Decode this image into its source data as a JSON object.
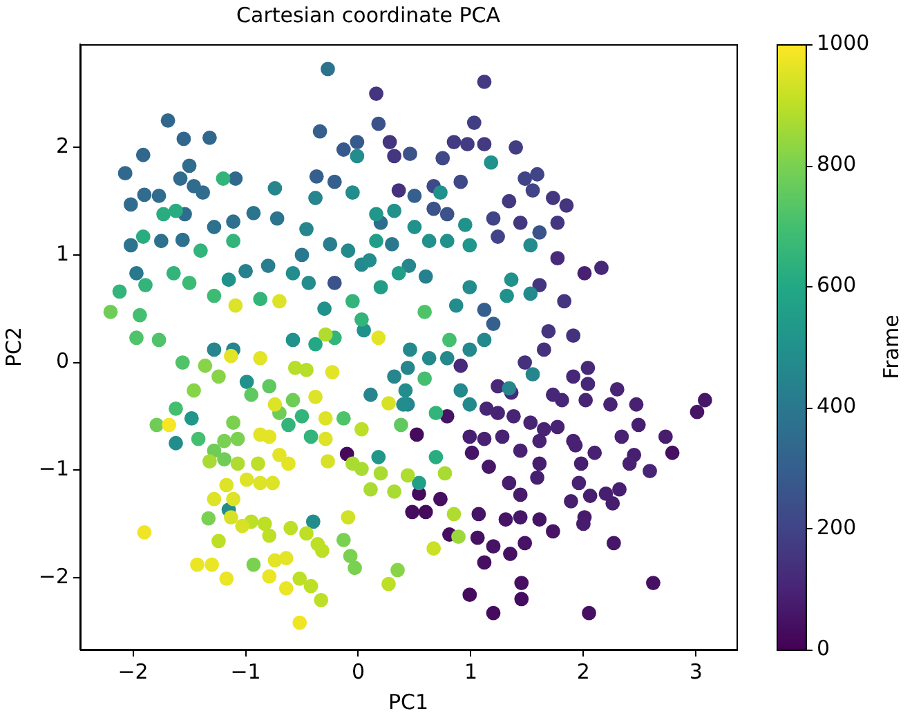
{
  "chart_data": {
    "type": "scatter",
    "title": "Cartesian coordinate PCA",
    "xlabel": "PC1",
    "ylabel": "PC2",
    "clabel": "Frame",
    "marker": "circle",
    "xlim": [
      -2.47,
      3.36
    ],
    "ylim": [
      -2.67,
      2.96
    ],
    "xticks": [
      {
        "value": -2,
        "label": "−2"
      },
      {
        "value": -1,
        "label": "−1"
      },
      0,
      1,
      2,
      3
    ],
    "yticks": [
      {
        "value": -2,
        "label": "−2"
      },
      {
        "value": -1,
        "label": "−1"
      },
      0,
      1,
      2
    ],
    "clim": [
      0,
      1000
    ],
    "cticks": [
      0,
      200,
      400,
      600,
      800,
      1000
    ],
    "x": [
      -0.1,
      0.52,
      0.54,
      0.6,
      0.79,
      0.48,
      0.73,
      0.81,
      0.99,
      1.2,
      2.05,
      1.45,
      1.45,
      1.12,
      1.06,
      1.2,
      1.35,
      1.48,
      1.07,
      1.31,
      1.44,
      1.61,
      1.73,
      2.27,
      2.62,
      2.79,
      3.01,
      3.08,
      1.16,
      1.01,
      1.44,
      2.01,
      2.0,
      1.89,
      2.06,
      2.2,
      2.32,
      2.26,
      1.96,
      1.98,
      1.93,
      1.61,
      1.59,
      1.34,
      0.99,
      1.12,
      1.28,
      1.44,
      1.61,
      1.65,
      1.53,
      1.38,
      1.24,
      1.14,
      1.77,
      1.91,
      2.1,
      1.81,
      1.73,
      2.02,
      1.91,
      2.04,
      2.04,
      2.3,
      2.24,
      2.47,
      2.49,
      2.34,
      2.45,
      2.41,
      2.59,
      2.73,
      1.24,
      1.36,
      0.91,
      2.01,
      2.16,
      1.77,
      1.48,
      1.65,
      1.69,
      1.91,
      1.61,
      1.83,
      1.85,
      1.73,
      1.77,
      1.44,
      1.34,
      0.36,
      0.28,
      0.32,
      0.16,
      1.12,
      1.03,
      1.4,
      0.85,
      0.97,
      1.12,
      1.48,
      1.59,
      1.55,
      1.2,
      1.24,
      0.75,
      0.67,
      0.91,
      0.79,
      0.67,
      0.46,
      0.18,
      1.61,
      -0.21,
      -0.13,
      -0.01,
      -0.34,
      -0.37,
      -0.21,
      1.12,
      1.2,
      0.5,
      -1.69,
      -1.55,
      -1.32,
      -1.91,
      -2.07,
      -1.09,
      -1.5,
      -1.58,
      -1.46,
      -1.38,
      -1.9,
      -1.77,
      -2.02,
      -1.54,
      0.2,
      -1.75,
      -1.56,
      -1.28,
      -1.11,
      -2.02,
      -0.93,
      -0.72,
      -0.27,
      -1.97,
      -0.5,
      0.3,
      -0.25,
      -0.8,
      -1.0,
      0.6,
      -0.74,
      -0.46,
      -0.38,
      -1.28,
      -1.11,
      0.11,
      0.44,
      0.32,
      0.44,
      1.55,
      1.34,
      0.45,
      -0.58,
      -0.44,
      -0.05,
      -0.01,
      -0.09,
      0.03,
      0.1,
      1.53,
      1.53,
      0.99,
      0.87,
      0.46,
      0.63,
      0.79,
      0.99,
      1.12,
      0.91,
      0.99,
      0.42,
      0.4,
      -1.62,
      -0.4,
      -1.15,
      -0.99,
      -1.15,
      0.32,
      1.18,
      0.73,
      0.5,
      0.63,
      0.79,
      0.95,
      1.36,
      1.32,
      -0.3,
      0.05,
      -0.58,
      0.16,
      0.99,
      -1.48,
      0.18,
      0.16,
      0.2,
      0.36,
      0.54,
      -1.73,
      -1.62,
      -1.91,
      0.69,
      -0.38,
      -1.2,
      -1.11,
      -1.4,
      -2.12,
      -1.89,
      -1.64,
      -0.87,
      -0.05,
      0.03,
      -0.62,
      -0.5,
      -0.42,
      0.69,
      -0.21,
      -1.5,
      -1.28,
      -1.94,
      -1.62,
      -1.42,
      0.59,
      0.81,
      0.59,
      -1.97,
      -1.77,
      -1.56,
      -0.13,
      0.38,
      -0.95,
      -0.79,
      -2.2,
      -1.79,
      -0.7,
      -0.58,
      -1.28,
      -1.19,
      -1.33,
      -0.93,
      -0.13,
      -0.07,
      -0.03,
      -1.11,
      -1.19,
      -1.07,
      -1.36,
      -1.24,
      -1.46,
      0.35,
      0.89,
      0.77,
      0.44,
      0.85,
      -0.05,
      0.03,
      0.11,
      0.2,
      0.32,
      -1.32,
      -1.07,
      -0.29,
      -0.56,
      -0.46,
      0.27,
      -0.89,
      -1.24,
      -0.79,
      -0.6,
      -0.46,
      -0.36,
      -0.32,
      -0.52,
      -0.42,
      -0.33,
      -0.95,
      -0.83,
      0.03,
      0.67,
      -0.09,
      -1.13,
      -1.03,
      0.27,
      -0.27,
      -0.74,
      -0.38,
      -0.29,
      -0.29,
      -1.28,
      -1.11,
      -1.17,
      -0.99,
      -0.87,
      -0.76,
      -1.09,
      -0.7,
      -0.74,
      -0.64,
      -0.87,
      -0.79,
      -0.7,
      -0.62,
      -0.23,
      -0.87,
      -1.13,
      0.18,
      -1.43,
      -1.3,
      -1.17,
      -0.79,
      -0.64,
      -1.9,
      -0.52,
      -1.68
    ],
    "values": [
      -0.85,
      -0.67,
      -1.22,
      -1.39,
      -0.5,
      -1.39,
      -1.27,
      -1.6,
      -2.16,
      -2.33,
      -2.33,
      -2.2,
      -2.05,
      -1.86,
      -1.63,
      -1.71,
      -1.78,
      -1.68,
      -1.41,
      -1.46,
      -1.44,
      -1.46,
      -1.57,
      -1.68,
      -2.05,
      -0.84,
      -0.46,
      -0.35,
      -0.97,
      -0.84,
      -1.23,
      -1.44,
      -1.5,
      -1.29,
      -1.24,
      -1.22,
      -1.18,
      -1.31,
      -1.12,
      -0.94,
      -0.77,
      -0.94,
      -1.07,
      -1.12,
      -0.69,
      -0.71,
      -0.69,
      -0.82,
      -0.73,
      -0.62,
      -0.56,
      -0.5,
      -0.47,
      -0.43,
      -0.6,
      -0.73,
      -0.84,
      -0.35,
      -0.3,
      -0.35,
      -0.13,
      -0.05,
      -0.2,
      -0.25,
      -0.39,
      -0.39,
      -0.58,
      -0.69,
      -0.86,
      -0.94,
      -1.01,
      -0.69,
      -0.22,
      -0.28,
      -0.03,
      0.83,
      0.88,
      0.97,
      0.0,
      0.12,
      0.29,
      0.25,
      0.72,
      0.57,
      1.46,
      1.53,
      1.3,
      1.3,
      1.5,
      1.6,
      2.05,
      1.92,
      2.5,
      2.61,
      2.23,
      2.0,
      2.05,
      2.03,
      2.03,
      1.71,
      1.75,
      1.6,
      1.34,
      1.17,
      1.9,
      1.64,
      1.68,
      1.38,
      1.43,
      1.94,
      2.22,
      1.21,
      0.74,
      1.98,
      2.05,
      2.15,
      1.73,
      1.68,
      0.49,
      0.36,
      1.55,
      2.25,
      2.08,
      2.09,
      1.93,
      1.76,
      1.71,
      1.83,
      1.71,
      1.64,
      1.58,
      1.56,
      1.55,
      1.47,
      1.38,
      1.3,
      1.13,
      1.14,
      1.26,
      1.31,
      1.09,
      1.39,
      1.34,
      2.73,
      0.83,
      1.0,
      1.1,
      1.1,
      0.9,
      0.85,
      0.8,
      1.62,
      1.24,
      1.53,
      0.12,
      0.12,
      -0.3,
      -0.39,
      -0.13,
      -0.05,
      -0.11,
      -0.24,
      0.9,
      0.83,
      0.74,
      1.58,
      1.92,
      1.04,
      0.91,
      0.95,
      1.09,
      0.64,
      0.7,
      0.53,
      0.12,
      0.04,
      0.04,
      0.12,
      0.21,
      -0.26,
      -0.39,
      -0.26,
      -0.39,
      -0.75,
      -1.48,
      -1.37,
      -0.18,
      0.77,
      1.41,
      1.86,
      1.58,
      1.26,
      1.13,
      1.13,
      1.28,
      0.77,
      0.62,
      0.5,
      0.3,
      0.21,
      1.38,
      1.09,
      -0.52,
      -0.88,
      1.13,
      0.7,
      0.83,
      -1.12,
      1.38,
      1.41,
      1.17,
      -0.88,
      0.17,
      1.71,
      1.13,
      1.04,
      0.66,
      0.72,
      0.83,
      0.59,
      0.57,
      0.4,
      -0.58,
      -0.5,
      -0.69,
      -0.47,
      0.23,
      0.74,
      0.62,
      0.44,
      -0.43,
      -0.71,
      -0.15,
      0.21,
      0.47,
      0.23,
      0.21,
      0.0,
      -0.52,
      -0.58,
      -0.3,
      -0.22,
      0.47,
      -0.58,
      -0.47,
      -0.35,
      -0.82,
      -0.9,
      -1.45,
      -1.88,
      -1.65,
      -1.8,
      -1.91,
      -0.56,
      -0.73,
      -0.71,
      -0.03,
      -0.13,
      -0.26,
      -1.93,
      -1.62,
      -1.03,
      -1.05,
      -1.41,
      -0.94,
      -0.99,
      -1.18,
      -1.03,
      -1.2,
      -0.92,
      -0.94,
      0.26,
      -0.05,
      -0.07,
      -2.06,
      -0.94,
      -1.66,
      -1.61,
      -1.54,
      -1.59,
      -1.69,
      -1.75,
      -2.01,
      -2.08,
      -2.21,
      -1.48,
      -1.5,
      -0.62,
      -1.73,
      -1.44,
      -1.44,
      -1.52,
      -0.38,
      -0.92,
      -0.39,
      -0.32,
      -0.52,
      -0.71,
      -1.27,
      -1.27,
      -1.14,
      -1.09,
      -1.12,
      -1.12,
      0.53,
      0.57,
      -1.84,
      -1.82,
      -0.67,
      -0.69,
      -0.86,
      -0.94,
      -0.09,
      0.04,
      0.06,
      0.23,
      -1.88,
      -1.88,
      -2.01,
      -1.99,
      -2.1,
      -1.58,
      -2.42,
      -0.58
    ],
    "cvalues": [
      20,
      30,
      30,
      25,
      50,
      35,
      40,
      35,
      30,
      30,
      40,
      35,
      40,
      40,
      45,
      50,
      45,
      50,
      55,
      50,
      60,
      55,
      50,
      60,
      45,
      40,
      50,
      60,
      60,
      55,
      70,
      70,
      75,
      80,
      80,
      85,
      85,
      80,
      90,
      85,
      90,
      80,
      85,
      80,
      85,
      90,
      95,
      90,
      95,
      95,
      100,
      100,
      100,
      105,
      95,
      90,
      90,
      105,
      110,
      100,
      110,
      115,
      110,
      100,
      95,
      90,
      85,
      90,
      85,
      90,
      100,
      80,
      115,
      115,
      120,
      90,
      110,
      120,
      140,
      140,
      150,
      145,
      150,
      150,
      150,
      155,
      160,
      160,
      165,
      140,
      150,
      155,
      150,
      170,
      180,
      180,
      170,
      175,
      170,
      200,
      200,
      200,
      200,
      200,
      220,
      220,
      220,
      250,
      250,
      250,
      250,
      250,
      250,
      280,
      280,
      300,
      300,
      300,
      300,
      300,
      300,
      330,
      330,
      330,
      330,
      340,
      340,
      350,
      350,
      350,
      350,
      350,
      350,
      350,
      350,
      350,
      370,
      370,
      370,
      370,
      380,
      380,
      380,
      380,
      400,
      400,
      400,
      420,
      420,
      430,
      430,
      450,
      450,
      450,
      450,
      450,
      450,
      450,
      450,
      450,
      450,
      450,
      450,
      480,
      480,
      480,
      480,
      470,
      470,
      480,
      480,
      470,
      480,
      480,
      470,
      470,
      470,
      470,
      470,
      470,
      470,
      480,
      480,
      480,
      480,
      480,
      500,
      500,
      500,
      500,
      500,
      500,
      500,
      500,
      500,
      500,
      500,
      500,
      500,
      500,
      520,
      520,
      520,
      520,
      550,
      550,
      550,
      560,
      620,
      620,
      620,
      620,
      600,
      650,
      650,
      650,
      650,
      650,
      650,
      650,
      650,
      650,
      650,
      650,
      650,
      650,
      650,
      680,
      680,
      700,
      700,
      700,
      700,
      700,
      720,
      720,
      720,
      720,
      720,
      750,
      750,
      750,
      780,
      780,
      780,
      780,
      780,
      780,
      800,
      800,
      800,
      800,
      800,
      800,
      800,
      800,
      820,
      820,
      820,
      820,
      850,
      870,
      880,
      880,
      870,
      870,
      870,
      870,
      870,
      870,
      880,
      880,
      890,
      890,
      900,
      900,
      900,
      900,
      900,
      900,
      900,
      900,
      900,
      900,
      900,
      900,
      900,
      900,
      920,
      930,
      940,
      940,
      940,
      940,
      950,
      950,
      950,
      950,
      950,
      950,
      950,
      950,
      950,
      950,
      950,
      950,
      960,
      960,
      960,
      960,
      960,
      960,
      960,
      960,
      960,
      960,
      970,
      970,
      970,
      970,
      970,
      980,
      980,
      990
    ]
  }
}
